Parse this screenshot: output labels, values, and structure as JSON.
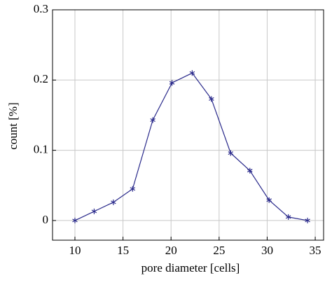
{
  "chart_data": {
    "type": "line",
    "xlabel": "pore diameter [cells]",
    "ylabel": "count [%]",
    "x": [
      10,
      12,
      14,
      16,
      18.1,
      20.1,
      22.2,
      24.2,
      26.2,
      28.2,
      30.2,
      32.2,
      34.2
    ],
    "series": [
      {
        "name": "count",
        "color": "#2b2b8c",
        "values": [
          0,
          0.013,
          0.026,
          0.045,
          0.143,
          0.196,
          0.21,
          0.173,
          0.096,
          0.071,
          0.029,
          0.005,
          0
        ]
      }
    ],
    "xlim": [
      7.67,
      35.87
    ],
    "xticks": [
      10,
      15,
      20,
      25,
      30,
      35
    ],
    "ylim": [
      -0.028,
      0.3
    ],
    "yticks": [
      0,
      0.1,
      0.2,
      0.3
    ],
    "grid": true,
    "marker": "asterisk"
  }
}
